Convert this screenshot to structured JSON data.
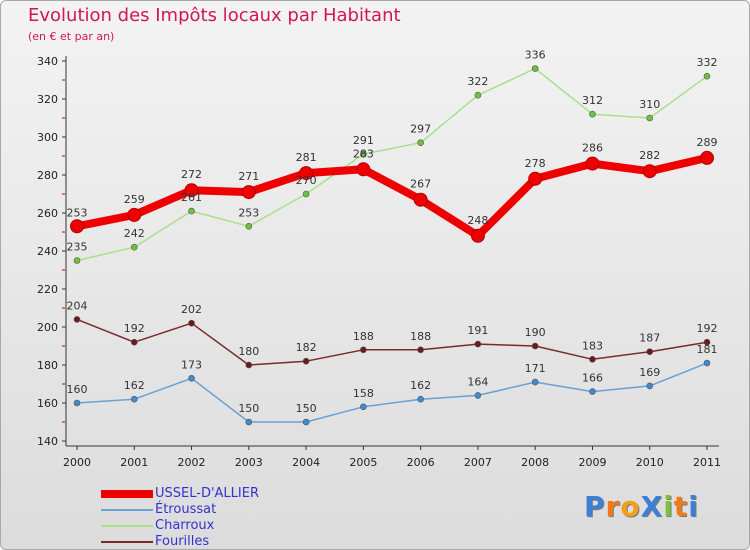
{
  "title": "Evolution des Impôts locaux par Habitant",
  "subtitle": "(en € et par an)",
  "logo": "ProXiti",
  "chart_data": {
    "type": "line",
    "categories": [
      "2000",
      "2001",
      "2002",
      "2003",
      "2004",
      "2005",
      "2006",
      "2007",
      "2008",
      "2009",
      "2010",
      "2011"
    ],
    "ylim": [
      140,
      340
    ],
    "yticks": [
      140,
      160,
      180,
      200,
      220,
      240,
      260,
      280,
      300,
      320,
      340
    ],
    "grid": false,
    "legend_placement": "bottom-left",
    "series": [
      {
        "name": "USSEL-D'ALLIER",
        "color": "#ee0000",
        "thick": true,
        "values": [
          253,
          259,
          272,
          271,
          281,
          283,
          267,
          248,
          278,
          286,
          282,
          289
        ],
        "labels": [
          "253",
          "259",
          "272",
          "271",
          "281",
          "283",
          "267",
          "248",
          "278",
          "286",
          "282",
          "289"
        ]
      },
      {
        "name": "Étroussat",
        "color": "#6aa0d4",
        "point_color": "#3d8bd4",
        "values": [
          160,
          162,
          173,
          150,
          150,
          158,
          162,
          164,
          171,
          166,
          169,
          181
        ],
        "labels": [
          "160",
          "162",
          "173",
          "150",
          "150",
          "158",
          "162",
          "164",
          "171",
          "166",
          "169",
          "181"
        ]
      },
      {
        "name": "Charroux",
        "color": "#a8e08a",
        "point_color": "#6cc23a",
        "values": [
          235,
          242,
          261,
          253,
          270,
          291,
          297,
          322,
          336,
          312,
          310,
          332
        ],
        "labels": [
          "235",
          "242",
          "261",
          "253",
          "270",
          "291",
          "297",
          "322",
          "336",
          "312",
          "310",
          "332"
        ]
      },
      {
        "name": "Fourilles",
        "color": "#7a2a2a",
        "point_color": "#6a1a1a",
        "values": [
          204,
          192,
          202,
          180,
          182,
          188,
          188,
          191,
          190,
          183,
          187,
          192
        ],
        "labels": [
          "204",
          "192",
          "202",
          "180",
          "182",
          "188",
          "188",
          "191",
          "190",
          "183",
          "187",
          "192"
        ]
      }
    ]
  }
}
